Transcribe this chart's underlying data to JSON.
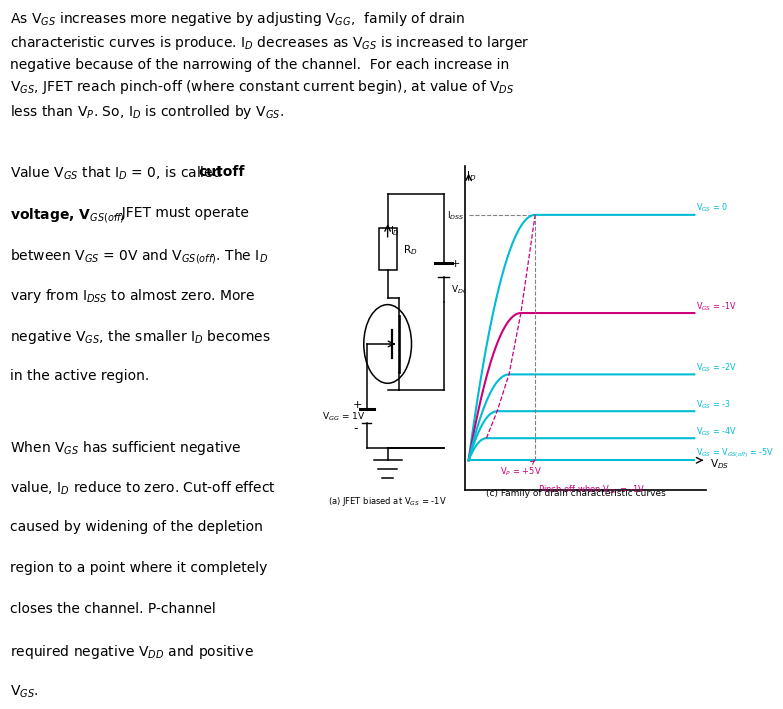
{
  "bg_color": "#ffffff",
  "text_color": "#000000",
  "vgs_labels": [
    "V$_{GS}$ = 0",
    "V$_{GS}$ = -1V",
    "V$_{GS}$ = -2V",
    "V$_{GS}$ = -3",
    "V$_{GS}$ = -4V",
    "V$_{GS}$ = V$_{GS(off)}$ = -5V"
  ],
  "vgs_levels": [
    1.0,
    0.6,
    0.35,
    0.2,
    0.09,
    0.0
  ],
  "vgs_colors": [
    "#00bcd4",
    "#cc007a",
    "#00bcd4",
    "#00bcd4",
    "#00bcd4",
    "#00bcd4"
  ],
  "pinch_x": [
    2.8,
    2.2,
    1.7,
    1.2,
    0.75,
    0.0
  ],
  "font_size_para": 10.0,
  "font_size_small": 6.5
}
